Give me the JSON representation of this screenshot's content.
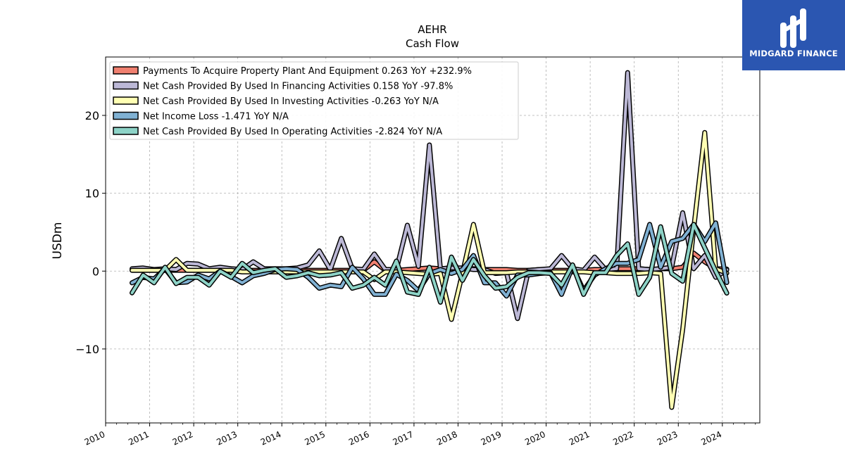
{
  "brand": {
    "name": "MIDGARD FINANCE",
    "logo_icon": "midgard-logo-icon",
    "color": "#2b56b1"
  },
  "chart_data": {
    "type": "line",
    "title": "AEHR",
    "subtitle": "Cash Flow",
    "ylabel": "USDm",
    "xlabel": "",
    "ylim": [
      -19.5,
      27.5
    ],
    "xlim": [
      2010.0,
      2024.85
    ],
    "yticks": [
      -10,
      0,
      10,
      20
    ],
    "ytick_labels": [
      "−10",
      "0",
      "10",
      "20"
    ],
    "xticks": [
      2010,
      2011,
      2012,
      2013,
      2014,
      2015,
      2016,
      2017,
      2018,
      2019,
      2020,
      2021,
      2022,
      2023,
      2024
    ],
    "grid": true,
    "legend_position": "top-left",
    "series": [
      {
        "name": "Payments To Acquire Property Plant And Equipment  0.263 YoY +232.9%",
        "color": "#f08070",
        "x": [
          2010.6,
          2010.85,
          2011.1,
          2011.35,
          2011.6,
          2011.85,
          2012.1,
          2012.35,
          2012.6,
          2012.85,
          2013.1,
          2013.35,
          2013.6,
          2013.85,
          2014.1,
          2014.35,
          2014.6,
          2014.85,
          2015.1,
          2015.35,
          2015.6,
          2015.85,
          2016.1,
          2016.35,
          2016.6,
          2016.85,
          2017.1,
          2017.35,
          2017.6,
          2017.85,
          2018.1,
          2018.35,
          2018.6,
          2018.85,
          2019.1,
          2019.35,
          2019.6,
          2019.85,
          2020.1,
          2020.35,
          2020.6,
          2020.85,
          2021.1,
          2021.35,
          2021.6,
          2021.85,
          2022.1,
          2022.35,
          2022.6,
          2022.85,
          2023.1,
          2023.35,
          2023.6,
          2023.85,
          2024.1
        ],
        "y": [
          0.1,
          0.1,
          0.1,
          0.1,
          0.1,
          0.1,
          0.1,
          0.1,
          0.1,
          0.1,
          0.1,
          0.1,
          0.1,
          0.1,
          0.1,
          0.1,
          0.1,
          0.1,
          0.1,
          0.1,
          0.1,
          0.1,
          1.2,
          0.1,
          0.1,
          0.2,
          0.3,
          0.4,
          0.3,
          0.4,
          0.3,
          0.3,
          0.2,
          0.2,
          0.2,
          0.1,
          0.1,
          0.2,
          0.1,
          0.1,
          0.1,
          0.1,
          0.2,
          0.2,
          0.3,
          0.3,
          0.3,
          0.2,
          0.3,
          0.3,
          0.5,
          2.3,
          1.2,
          0.3,
          0.26
        ]
      },
      {
        "name": "Net Cash Provided By Used In Financing Activities  0.158 YoY -97.8%",
        "color": "#bcb8d6",
        "x": [
          2010.6,
          2010.85,
          2011.1,
          2011.35,
          2011.6,
          2011.85,
          2012.1,
          2012.35,
          2012.6,
          2012.85,
          2013.1,
          2013.35,
          2013.6,
          2013.85,
          2014.1,
          2014.35,
          2014.6,
          2014.85,
          2015.1,
          2015.35,
          2015.6,
          2015.85,
          2016.1,
          2016.35,
          2016.6,
          2016.85,
          2017.1,
          2017.35,
          2017.6,
          2017.85,
          2018.1,
          2018.35,
          2018.6,
          2018.85,
          2019.1,
          2019.35,
          2019.6,
          2019.85,
          2020.1,
          2020.35,
          2020.6,
          2020.85,
          2021.1,
          2021.35,
          2021.6,
          2021.85,
          2022.1,
          2022.35,
          2022.6,
          2022.85,
          2023.1,
          2023.35,
          2023.6,
          2023.85,
          2024.1
        ],
        "y": [
          0.3,
          0.4,
          0.2,
          0.3,
          0.2,
          1.0,
          0.9,
          0.3,
          0.5,
          0.3,
          0.2,
          1.2,
          0.3,
          0.3,
          0.3,
          0.4,
          0.8,
          2.6,
          0.2,
          4.2,
          0.3,
          0.2,
          2.2,
          0.2,
          0.2,
          5.9,
          0.6,
          16.2,
          0.3,
          0.4,
          0.4,
          0.2,
          0.2,
          -0.3,
          -0.2,
          -6.1,
          0.1,
          0.2,
          0.3,
          2.0,
          0.3,
          0.1,
          1.8,
          0.2,
          0.3,
          25.5,
          0.3,
          0.2,
          0.3,
          0.5,
          7.5,
          0.3,
          2.0,
          -0.8,
          0.16
        ]
      },
      {
        "name": "Net Cash Provided By Used In Investing Activities  -0.263 YoY N/A",
        "color": "#ffffb3",
        "x": [
          2010.6,
          2010.85,
          2011.1,
          2011.35,
          2011.6,
          2011.85,
          2012.1,
          2012.35,
          2012.6,
          2012.85,
          2013.1,
          2013.35,
          2013.6,
          2013.85,
          2014.1,
          2014.35,
          2014.6,
          2014.85,
          2015.1,
          2015.35,
          2015.6,
          2015.85,
          2016.1,
          2016.35,
          2016.6,
          2016.85,
          2017.1,
          2017.35,
          2017.6,
          2017.85,
          2018.1,
          2018.35,
          2018.6,
          2018.85,
          2019.1,
          2019.35,
          2019.6,
          2019.85,
          2020.1,
          2020.35,
          2020.6,
          2020.85,
          2021.1,
          2021.35,
          2021.6,
          2021.85,
          2022.1,
          2022.35,
          2022.6,
          2022.85,
          2023.1,
          2023.35,
          2023.6,
          2023.85,
          2024.1
        ],
        "y": [
          0.1,
          0.1,
          0.1,
          0.1,
          1.5,
          0.1,
          0.1,
          0.1,
          0.1,
          0.1,
          -0.1,
          -0.1,
          -0.1,
          -0.1,
          -0.1,
          -0.1,
          -0.1,
          -0.1,
          -0.1,
          -0.1,
          -0.1,
          -0.1,
          -1.1,
          -0.1,
          -0.1,
          -0.2,
          -0.3,
          -0.4,
          -0.3,
          -6.2,
          -0.3,
          6.0,
          -0.2,
          -0.2,
          -0.2,
          -0.1,
          -0.1,
          -0.2,
          -0.1,
          -0.1,
          -0.1,
          -0.1,
          -0.2,
          -0.2,
          -0.3,
          -0.3,
          -0.3,
          -0.2,
          -0.3,
          -17.5,
          -7.5,
          5.5,
          17.8,
          0.3,
          -0.26
        ]
      },
      {
        "name": "Net Income Loss  -1.471 YoY N/A",
        "color": "#80b1d3",
        "x": [
          2010.6,
          2010.85,
          2011.1,
          2011.35,
          2011.6,
          2011.85,
          2012.1,
          2012.35,
          2012.6,
          2012.85,
          2013.1,
          2013.35,
          2013.6,
          2013.85,
          2014.1,
          2014.35,
          2014.6,
          2014.85,
          2015.1,
          2015.35,
          2015.6,
          2015.85,
          2016.1,
          2016.35,
          2016.6,
          2016.85,
          2017.1,
          2017.35,
          2017.6,
          2017.85,
          2018.1,
          2018.35,
          2018.6,
          2018.85,
          2019.1,
          2019.35,
          2019.6,
          2019.85,
          2020.1,
          2020.35,
          2020.6,
          2020.85,
          2021.1,
          2021.35,
          2021.6,
          2021.85,
          2022.1,
          2022.35,
          2022.6,
          2022.85,
          2023.1,
          2023.35,
          2023.6,
          2023.85,
          2024.1
        ],
        "y": [
          -1.5,
          -0.8,
          -1.0,
          0.3,
          -1.5,
          -1.4,
          -0.5,
          -1.0,
          0.0,
          -0.7,
          -1.5,
          -0.6,
          -0.3,
          0.2,
          0.3,
          0.2,
          -0.8,
          -2.2,
          -1.8,
          -2.0,
          0.5,
          -1.0,
          -3.0,
          -3.0,
          -0.4,
          -1.2,
          -2.5,
          -0.3,
          0.2,
          -0.3,
          0.2,
          2.0,
          -1.5,
          -1.5,
          -3.2,
          -0.5,
          -0.5,
          -0.3,
          -0.2,
          -3.0,
          0.6,
          -2.5,
          -0.5,
          0.3,
          1.0,
          1.0,
          1.5,
          6.0,
          0.5,
          3.8,
          4.2,
          6.0,
          3.8,
          6.2,
          -1.47
        ]
      },
      {
        "name": "Net Cash Provided By Used In Operating Activities  -2.824 YoY N/A",
        "color": "#8dd3c7",
        "x": [
          2010.6,
          2010.85,
          2011.1,
          2011.35,
          2011.6,
          2011.85,
          2012.1,
          2012.35,
          2012.6,
          2012.85,
          2013.1,
          2013.35,
          2013.6,
          2013.85,
          2014.1,
          2014.35,
          2014.6,
          2014.85,
          2015.1,
          2015.35,
          2015.6,
          2015.85,
          2016.1,
          2016.35,
          2016.6,
          2016.85,
          2017.1,
          2017.35,
          2017.6,
          2017.85,
          2018.1,
          2018.35,
          2018.6,
          2018.85,
          2019.1,
          2019.35,
          2019.6,
          2019.85,
          2020.1,
          2020.35,
          2020.6,
          2020.85,
          2021.1,
          2021.35,
          2021.6,
          2021.85,
          2022.1,
          2022.35,
          2022.6,
          2022.85,
          2023.1,
          2023.35,
          2023.6,
          2023.85,
          2024.1
        ],
        "y": [
          -2.8,
          -0.5,
          -1.5,
          0.5,
          -1.6,
          -0.8,
          -0.8,
          -1.8,
          0.0,
          -0.8,
          1.0,
          -0.2,
          0.1,
          0.3,
          -0.8,
          -0.6,
          -0.2,
          -0.6,
          -0.5,
          -0.2,
          -2.2,
          -1.8,
          -0.8,
          -1.8,
          1.3,
          -2.7,
          -3.0,
          0.5,
          -4.0,
          1.8,
          -1.2,
          1.5,
          -0.6,
          -2.2,
          -2.0,
          -0.8,
          -0.2,
          -0.2,
          -0.3,
          -1.8,
          0.8,
          -3.0,
          -0.2,
          -0.2,
          2.0,
          3.5,
          -3.0,
          -0.8,
          5.7,
          -0.3,
          -1.3,
          6.0,
          3.0,
          0.0,
          -2.82
        ]
      }
    ]
  }
}
